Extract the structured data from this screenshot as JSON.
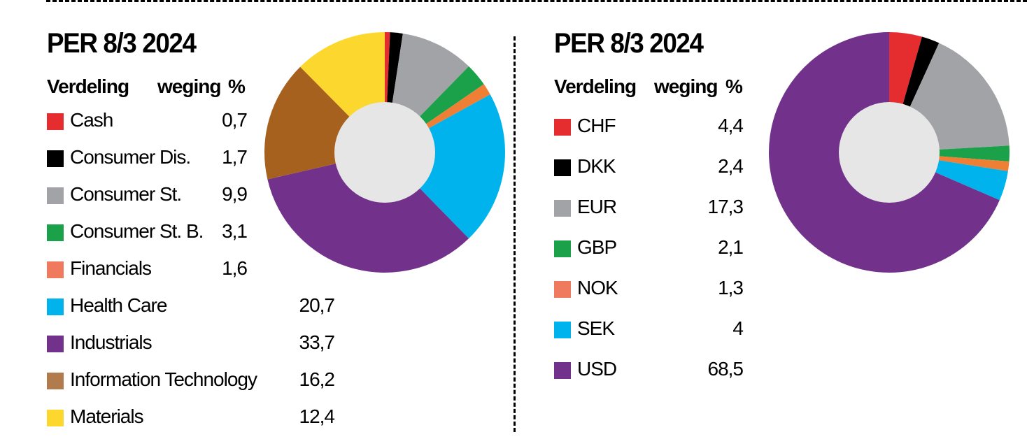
{
  "chart_data": [
    {
      "type": "pie",
      "variant": "donut",
      "title": "PER 8/3 2024",
      "table_headers": {
        "category": "Verdeling",
        "weight": "weging",
        "unit": "%"
      },
      "slices": [
        {
          "label": "Cash",
          "value": 0.7,
          "value_text": "0,7",
          "color": "#e52d2f"
        },
        {
          "label": "Consumer Dis.",
          "value": 1.7,
          "value_text": "1,7",
          "color": "#000000"
        },
        {
          "label": "Consumer St.",
          "value": 9.9,
          "value_text": "9,9",
          "color": "#a2a3a6"
        },
        {
          "label": "Consumer St. B.",
          "value": 3.1,
          "value_text": "3,1",
          "color": "#1ba14a"
        },
        {
          "label": "Financials",
          "value": 1.6,
          "value_text": "1,6",
          "color": "#ee7f34"
        },
        {
          "label": "Health Care",
          "value": 20.7,
          "value_text": "20,7",
          "color": "#00b3ec"
        },
        {
          "label": "Industrials",
          "value": 33.7,
          "value_text": "33,7",
          "color": "#72318b"
        },
        {
          "label": "Information Technology",
          "value": 16.2,
          "value_text": "16,2",
          "color": "#a6611f"
        },
        {
          "label": "Materials",
          "value": 12.4,
          "value_text": "12,4",
          "color": "#fcd72e"
        }
      ],
      "legend_swatch_overrides": {
        "Financials": "#ef7a5e",
        "Information Technology": "#b27b4e"
      }
    },
    {
      "type": "pie",
      "variant": "donut",
      "title": "PER 8/3 2024",
      "table_headers": {
        "category": "Verdeling",
        "weight": "weging",
        "unit": "%"
      },
      "slices": [
        {
          "label": "CHF",
          "value": 4.4,
          "value_text": "4,4",
          "color": "#e52d2f"
        },
        {
          "label": "DKK",
          "value": 2.4,
          "value_text": "2,4",
          "color": "#000000"
        },
        {
          "label": "EUR",
          "value": 17.3,
          "value_text": "17,3",
          "color": "#a2a3a6"
        },
        {
          "label": "GBP",
          "value": 2.1,
          "value_text": "2,1",
          "color": "#1ba14a"
        },
        {
          "label": "NOK",
          "value": 1.3,
          "value_text": "1,3",
          "color": "#ee7f34"
        },
        {
          "label": "SEK",
          "value": 4,
          "value_text": "4",
          "color": "#00b3ec"
        },
        {
          "label": "USD",
          "value": 68.5,
          "value_text": "68,5",
          "color": "#72318b"
        }
      ],
      "legend_swatch_overrides": {
        "NOK": "#ef7a5e"
      }
    }
  ],
  "colors": {
    "donut_hole": "#e6e6e7",
    "text": "#000000"
  }
}
